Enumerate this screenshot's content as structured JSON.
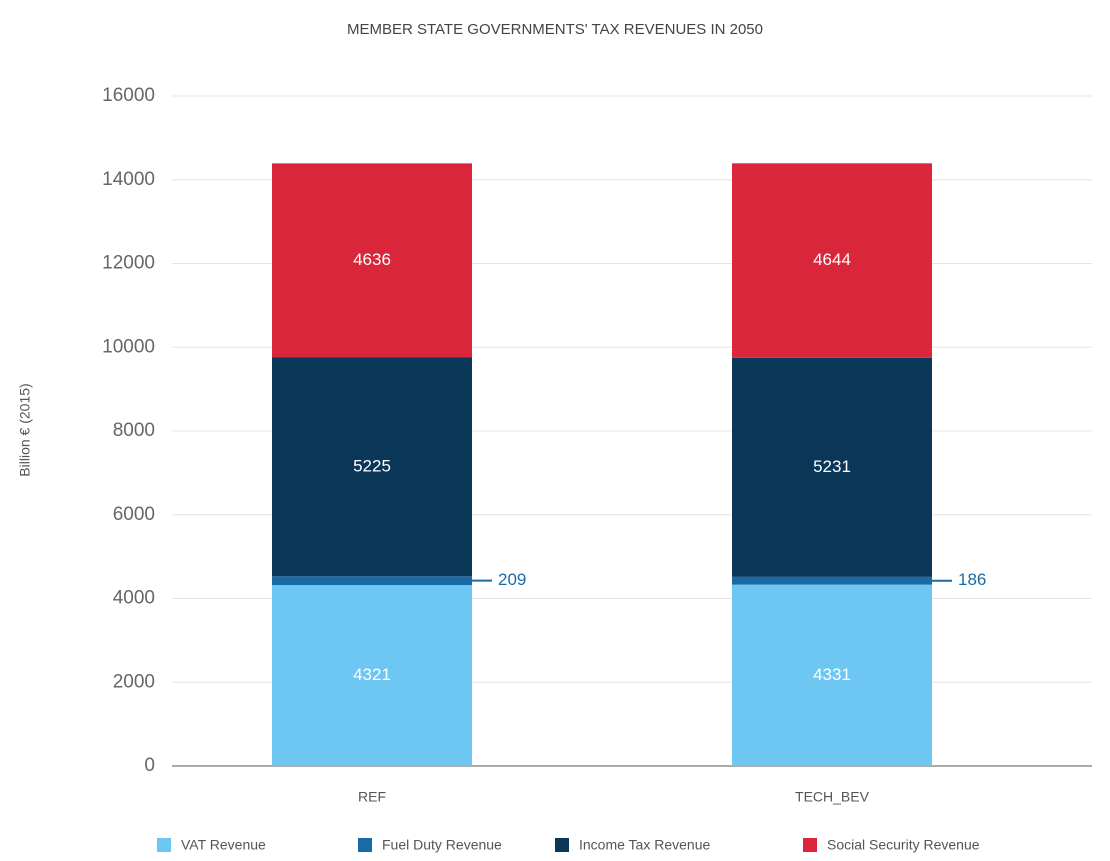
{
  "chart_data": {
    "type": "stacked_bar",
    "title": "MEMBER STATE GOVERNMENTS' TAX REVENUES IN 2050",
    "y_label": "Billion € (2015)",
    "categories": [
      "REF",
      "TECH_BEV"
    ],
    "series": [
      {
        "name": "VAT Revenue",
        "color": "#6ec6f2",
        "values": [
          4321,
          4331
        ]
      },
      {
        "name": "Fuel Duty Revenue",
        "color": "#1a6aa5",
        "values": [
          209,
          186
        ],
        "label_position": "outside"
      },
      {
        "name": "Income Tax Revenue",
        "color": "#0a3657",
        "values": [
          5225,
          5231
        ]
      },
      {
        "name": "Social Security Revenue",
        "color": "#d9263b",
        "values": [
          4636,
          4644
        ]
      }
    ],
    "ylim": [
      0,
      16000
    ],
    "yticks": [
      0,
      2000,
      4000,
      6000,
      8000,
      10000,
      12000,
      14000,
      16000
    ],
    "grid": true,
    "legend": "bottom"
  }
}
